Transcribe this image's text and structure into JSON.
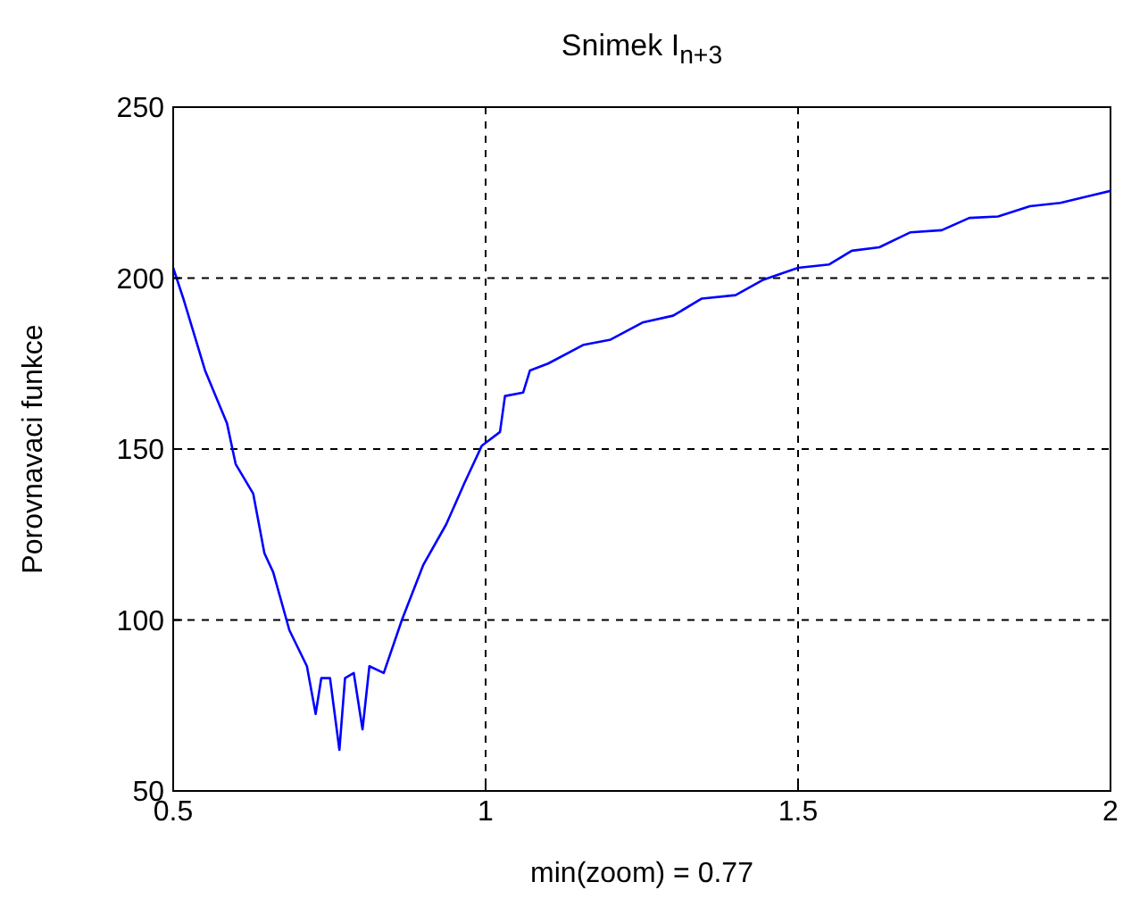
{
  "chart_data": {
    "type": "line",
    "title": "Snimek I$_{n+3}$",
    "xlabel": "min(zoom) = 0.77",
    "ylabel": "Porovnavaci funkce",
    "x": [
      0.5,
      0.517,
      0.551,
      0.586,
      0.6,
      0.628,
      0.646,
      0.66,
      0.686,
      0.714,
      0.728,
      0.737,
      0.751,
      0.766,
      0.775,
      0.789,
      0.803,
      0.814,
      0.837,
      0.866,
      0.9,
      0.937,
      0.966,
      0.994,
      1.023,
      1.031,
      1.06,
      1.071,
      1.1,
      1.157,
      1.2,
      1.251,
      1.3,
      1.346,
      1.4,
      1.443,
      1.5,
      1.55,
      1.586,
      1.63,
      1.68,
      1.73,
      1.774,
      1.82,
      1.871,
      1.92,
      1.966,
      2.0
    ],
    "series": [
      {
        "color": "#0000ff",
        "values": [
          203,
          193.6,
          173,
          157.6,
          145.6,
          137,
          119.5,
          114,
          97,
          86.5,
          72.5,
          83,
          83,
          62,
          83,
          84.5,
          68,
          86.5,
          84.5,
          100,
          116,
          128,
          140,
          151,
          155,
          165.5,
          166.5,
          173,
          175,
          180.5,
          182,
          187,
          189,
          194,
          195,
          199.4,
          203,
          204,
          208,
          209,
          213.4,
          214,
          217.6,
          218,
          221,
          222,
          224,
          225.5
        ]
      }
    ],
    "xlim": [
      0.5,
      2
    ],
    "xticks": [
      0.5,
      1,
      1.5,
      2
    ],
    "ylim": [
      50,
      250
    ],
    "yticks": [
      50,
      100,
      150,
      200,
      250
    ],
    "grid": true,
    "line_style": "solid",
    "marker": "none"
  }
}
